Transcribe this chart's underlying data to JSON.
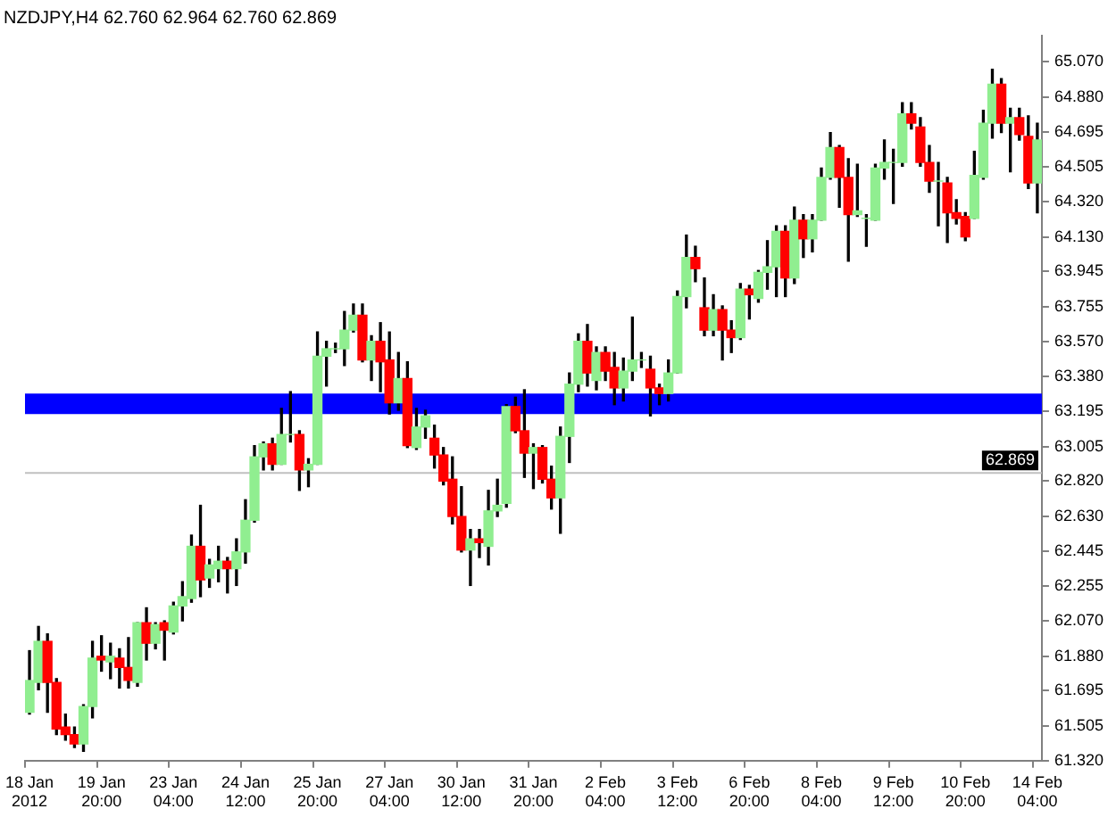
{
  "chart_data": {
    "type": "candlestick",
    "title": "NZDJPY,H4 62.760 62.964 62.760 62.869",
    "categories": [
      "18 Jan 2012",
      null,
      null,
      null,
      null,
      null,
      null,
      null,
      "19 Jan 20:00",
      null,
      null,
      null,
      null,
      null,
      null,
      null,
      "23 Jan 04:00",
      null,
      null,
      null,
      null,
      null,
      null,
      null,
      "24 Jan 12:00",
      null,
      null,
      null,
      null,
      null,
      null,
      null,
      "25 Jan 20:00",
      null,
      null,
      null,
      null,
      null,
      null,
      null,
      "27 Jan 04:00",
      null,
      null,
      null,
      null,
      null,
      null,
      null,
      "30 Jan 12:00",
      null,
      null,
      null,
      null,
      null,
      null,
      null,
      "31 Jan 20:00",
      null,
      null,
      null,
      null,
      null,
      null,
      null,
      "2 Feb 04:00",
      null,
      null,
      null,
      null,
      null,
      null,
      null,
      "3 Feb 12:00",
      null,
      null,
      null,
      null,
      null,
      null,
      null,
      "6 Feb 20:00",
      null,
      null,
      null,
      null,
      null,
      null,
      null,
      "8 Feb 04:00",
      null,
      null,
      null,
      null,
      null,
      null,
      null,
      "9 Feb 12:00",
      null,
      null,
      null,
      null,
      null,
      null,
      null,
      "10 Feb 20:00",
      null,
      null,
      null,
      null,
      null,
      null,
      null,
      "14 Feb 04:00"
    ],
    "ohlc": [
      [
        61.58,
        61.91,
        61.57,
        61.75
      ],
      [
        61.74,
        62.04,
        61.7,
        61.96
      ],
      [
        61.96,
        62.0,
        61.58,
        61.74
      ],
      [
        61.74,
        61.76,
        61.46,
        61.49
      ],
      [
        61.5,
        61.57,
        61.43,
        61.46
      ],
      [
        61.46,
        61.5,
        61.39,
        61.41
      ],
      [
        61.41,
        61.62,
        61.37,
        61.61
      ],
      [
        61.61,
        61.96,
        61.55,
        61.87
      ],
      [
        61.88,
        61.99,
        61.8,
        61.86
      ],
      [
        61.85,
        61.95,
        61.76,
        61.88
      ],
      [
        61.87,
        61.92,
        61.71,
        61.82
      ],
      [
        61.82,
        61.98,
        61.71,
        61.75
      ],
      [
        61.74,
        62.06,
        61.72,
        62.06
      ],
      [
        62.06,
        62.14,
        61.86,
        61.95
      ],
      [
        61.95,
        62.06,
        61.92,
        62.05
      ],
      [
        62.06,
        62.07,
        61.86,
        62.02
      ],
      [
        62.01,
        62.17,
        62.0,
        62.15
      ],
      [
        62.15,
        62.28,
        62.07,
        62.2
      ],
      [
        62.19,
        62.53,
        62.17,
        62.47
      ],
      [
        62.47,
        62.69,
        62.2,
        62.29
      ],
      [
        62.3,
        62.4,
        62.25,
        62.37
      ],
      [
        62.35,
        62.47,
        62.28,
        62.39
      ],
      [
        62.39,
        62.41,
        62.22,
        62.35
      ],
      [
        62.35,
        62.51,
        62.26,
        62.44
      ],
      [
        62.44,
        62.72,
        62.38,
        62.61
      ],
      [
        62.61,
        63.01,
        62.6,
        62.95
      ],
      [
        62.95,
        63.03,
        62.88,
        63.02
      ],
      [
        63.02,
        63.05,
        62.88,
        62.91
      ],
      [
        62.91,
        63.21,
        62.91,
        63.07
      ],
      [
        63.07,
        63.3,
        63.03,
        63.07
      ],
      [
        63.07,
        63.09,
        62.77,
        62.88
      ],
      [
        62.88,
        62.94,
        62.79,
        62.91
      ],
      [
        62.91,
        63.62,
        62.91,
        63.49
      ],
      [
        63.49,
        63.57,
        63.33,
        63.53
      ],
      [
        63.53,
        63.56,
        63.51,
        63.53
      ],
      [
        63.53,
        63.73,
        63.44,
        63.63
      ],
      [
        63.63,
        63.77,
        63.62,
        63.71
      ],
      [
        63.71,
        63.77,
        63.46,
        63.47
      ],
      [
        63.47,
        63.6,
        63.36,
        63.57
      ],
      [
        63.57,
        63.67,
        63.3,
        63.46
      ],
      [
        63.47,
        63.62,
        63.18,
        63.24
      ],
      [
        63.24,
        63.51,
        63.2,
        63.37
      ],
      [
        63.37,
        63.46,
        63.0,
        63.01
      ],
      [
        63.0,
        63.21,
        62.99,
        63.11
      ],
      [
        63.11,
        63.2,
        63.05,
        63.17
      ],
      [
        63.05,
        63.12,
        62.89,
        62.96
      ],
      [
        62.96,
        63.0,
        62.8,
        62.82
      ],
      [
        62.83,
        62.95,
        62.59,
        62.63
      ],
      [
        62.63,
        62.79,
        62.44,
        62.45
      ],
      [
        62.45,
        62.56,
        62.26,
        62.51
      ],
      [
        62.51,
        62.56,
        62.41,
        62.49
      ],
      [
        62.47,
        62.77,
        62.37,
        62.66
      ],
      [
        62.66,
        62.83,
        62.63,
        62.69
      ],
      [
        62.7,
        63.23,
        62.68,
        63.22
      ],
      [
        63.22,
        63.27,
        63.08,
        63.09
      ],
      [
        63.09,
        63.31,
        62.84,
        62.97
      ],
      [
        62.97,
        63.02,
        62.78,
        63.0
      ],
      [
        63.0,
        63.01,
        62.81,
        62.83
      ],
      [
        62.83,
        62.9,
        62.67,
        62.73
      ],
      [
        62.73,
        63.11,
        62.54,
        63.06
      ],
      [
        63.06,
        63.4,
        62.92,
        63.34
      ],
      [
        63.34,
        63.61,
        63.3,
        63.57
      ],
      [
        63.57,
        63.66,
        63.33,
        63.4
      ],
      [
        63.36,
        63.54,
        63.31,
        63.51
      ],
      [
        63.51,
        63.54,
        63.36,
        63.41
      ],
      [
        63.43,
        63.51,
        63.23,
        63.32
      ],
      [
        63.32,
        63.48,
        63.25,
        63.41
      ],
      [
        63.41,
        63.7,
        63.36,
        63.47
      ],
      [
        63.47,
        63.51,
        63.43,
        63.47
      ],
      [
        63.42,
        63.49,
        63.17,
        63.32
      ],
      [
        63.32,
        63.34,
        63.23,
        63.29
      ],
      [
        63.29,
        63.47,
        63.25,
        63.4
      ],
      [
        63.4,
        63.84,
        63.4,
        63.81
      ],
      [
        63.81,
        64.14,
        63.75,
        64.02
      ],
      [
        64.02,
        64.08,
        63.89,
        63.96
      ],
      [
        63.75,
        63.91,
        63.6,
        63.63
      ],
      [
        63.63,
        63.82,
        63.6,
        63.74
      ],
      [
        63.74,
        63.76,
        63.47,
        63.63
      ],
      [
        63.63,
        63.68,
        63.51,
        63.59
      ],
      [
        63.59,
        63.88,
        63.58,
        63.85
      ],
      [
        63.85,
        63.87,
        63.69,
        63.82
      ],
      [
        63.8,
        63.95,
        63.78,
        63.94
      ],
      [
        63.94,
        64.11,
        63.85,
        63.97
      ],
      [
        63.97,
        64.19,
        63.81,
        64.16
      ],
      [
        64.16,
        64.19,
        63.81,
        63.91
      ],
      [
        63.91,
        64.29,
        63.88,
        64.22
      ],
      [
        64.22,
        64.25,
        64.02,
        64.12
      ],
      [
        64.12,
        64.25,
        64.05,
        64.22
      ],
      [
        64.22,
        64.5,
        64.22,
        64.45
      ],
      [
        64.45,
        64.69,
        64.44,
        64.61
      ],
      [
        64.61,
        64.62,
        64.29,
        64.45
      ],
      [
        64.45,
        64.55,
        64.0,
        64.25
      ],
      [
        64.25,
        64.52,
        64.24,
        64.27
      ],
      [
        64.23,
        64.25,
        64.08,
        64.23
      ],
      [
        64.22,
        64.52,
        64.22,
        64.5
      ],
      [
        64.5,
        64.65,
        64.44,
        64.53
      ],
      [
        64.53,
        64.6,
        64.31,
        64.53
      ],
      [
        64.53,
        64.85,
        64.51,
        64.79
      ],
      [
        64.79,
        64.85,
        64.71,
        64.74
      ],
      [
        64.72,
        64.77,
        64.51,
        64.53
      ],
      [
        64.53,
        64.62,
        64.37,
        64.43
      ],
      [
        64.43,
        64.53,
        64.19,
        64.43
      ],
      [
        64.42,
        64.45,
        64.1,
        64.26
      ],
      [
        64.26,
        64.33,
        64.2,
        64.23
      ],
      [
        64.24,
        64.26,
        64.11,
        64.13
      ],
      [
        64.23,
        64.59,
        64.23,
        64.46
      ],
      [
        64.45,
        64.81,
        64.44,
        64.74
      ],
      [
        64.74,
        65.03,
        64.66,
        64.95
      ],
      [
        64.95,
        64.98,
        64.69,
        64.74
      ],
      [
        64.74,
        64.82,
        64.48,
        64.77
      ],
      [
        64.77,
        64.82,
        64.65,
        64.68
      ],
      [
        64.67,
        64.78,
        64.39,
        64.42
      ],
      [
        64.42,
        64.74,
        64.26,
        64.65
      ]
    ],
    "colors": [
      "#90ee90",
      "#90ee90",
      "#ff0000",
      "#ff0000",
      "#ff0000",
      "#ff0000",
      "#90ee90",
      "#90ee90",
      "#ff0000",
      "#90ee90",
      "#ff0000",
      "#ff0000",
      "#90ee90",
      "#ff0000",
      "#90ee90",
      "#ff0000",
      "#90ee90",
      "#90ee90",
      "#90ee90",
      "#ff0000",
      "#90ee90",
      "#90ee90",
      "#ff0000",
      "#90ee90",
      "#90ee90",
      "#90ee90",
      "#90ee90",
      "#ff0000",
      "#90ee90",
      "#90ee90",
      "#ff0000",
      "#90ee90",
      "#90ee90",
      "#90ee90",
      "#90ee90",
      "#90ee90",
      "#90ee90",
      "#ff0000",
      "#90ee90",
      "#ff0000",
      "#ff0000",
      "#90ee90",
      "#ff0000",
      "#90ee90",
      "#90ee90",
      "#ff0000",
      "#ff0000",
      "#ff0000",
      "#ff0000",
      "#90ee90",
      "#ff0000",
      "#90ee90",
      "#90ee90",
      "#90ee90",
      "#ff0000",
      "#ff0000",
      "#90ee90",
      "#ff0000",
      "#ff0000",
      "#90ee90",
      "#90ee90",
      "#90ee90",
      "#ff0000",
      "#90ee90",
      "#ff0000",
      "#ff0000",
      "#90ee90",
      "#90ee90",
      "#90ee90",
      "#ff0000",
      "#ff0000",
      "#90ee90",
      "#90ee90",
      "#90ee90",
      "#ff0000",
      "#ff0000",
      "#90ee90",
      "#ff0000",
      "#ff0000",
      "#90ee90",
      "#ff0000",
      "#90ee90",
      "#90ee90",
      "#90ee90",
      "#ff0000",
      "#90ee90",
      "#ff0000",
      "#90ee90",
      "#90ee90",
      "#90ee90",
      "#ff0000",
      "#ff0000",
      "#90ee90",
      "#90ee90",
      "#90ee90",
      "#90ee90",
      "#90ee90",
      "#90ee90",
      "#ff0000",
      "#ff0000",
      "#ff0000",
      "#90ee90",
      "#ff0000",
      "#ff0000",
      "#ff0000",
      "#90ee90",
      "#90ee90",
      "#90ee90",
      "#ff0000",
      "#90ee90",
      "#ff0000",
      "#ff0000",
      "#90ee90"
    ],
    "ylim": [
      61.32,
      65.21
    ],
    "yticks": [
      {
        "value": 61.32,
        "label": "61.320"
      },
      {
        "value": 61.505,
        "label": "61.505"
      },
      {
        "value": 61.695,
        "label": "61.695"
      },
      {
        "value": 61.88,
        "label": "61.880"
      },
      {
        "value": 62.07,
        "label": "62.070"
      },
      {
        "value": 62.255,
        "label": "62.255"
      },
      {
        "value": 62.445,
        "label": "62.445"
      },
      {
        "value": 62.63,
        "label": "62.630"
      },
      {
        "value": 62.82,
        "label": "62.820"
      },
      {
        "value": 63.005,
        "label": "63.005"
      },
      {
        "value": 63.195,
        "label": "63.195"
      },
      {
        "value": 63.38,
        "label": "63.380"
      },
      {
        "value": 63.57,
        "label": "63.570"
      },
      {
        "value": 63.755,
        "label": "63.755"
      },
      {
        "value": 63.945,
        "label": "63.945"
      },
      {
        "value": 64.13,
        "label": "64.130"
      },
      {
        "value": 64.32,
        "label": "64.320"
      },
      {
        "value": 64.505,
        "label": "64.505"
      },
      {
        "value": 64.695,
        "label": "64.695"
      },
      {
        "value": 64.88,
        "label": "64.880"
      },
      {
        "value": 65.07,
        "label": "65.070"
      }
    ],
    "ref_lines": [
      {
        "axis": "y",
        "value": 62.869,
        "label": "62.869",
        "color": "#c0c0c0"
      }
    ],
    "bands": [
      {
        "axis": "y",
        "from": 63.18,
        "to": 63.29,
        "color": "#0000ff"
      }
    ],
    "grid": false,
    "legend": false
  }
}
